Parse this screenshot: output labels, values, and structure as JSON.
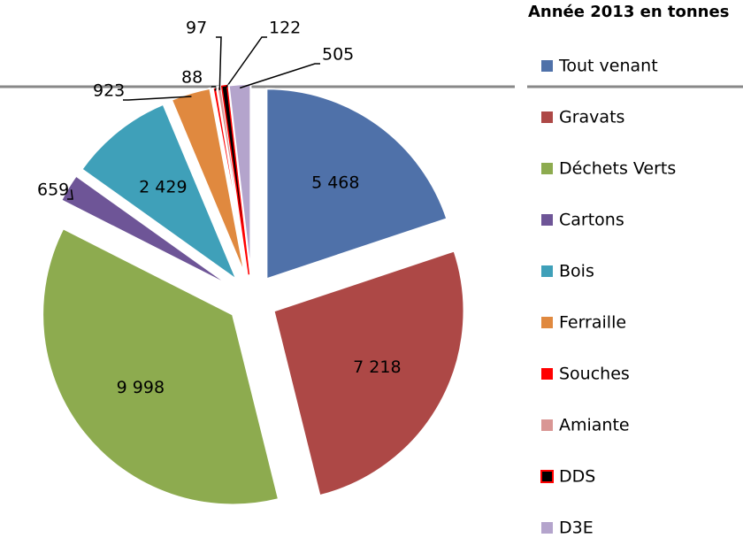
{
  "chart_data": {
    "type": "pie",
    "title": "Année 2013 en tonnes",
    "categories": [
      "Tout venant",
      "Gravats",
      "Déchets Verts",
      "Cartons",
      "Bois",
      "Ferraille",
      "Souches",
      "Amiante",
      "DDS",
      "D3E"
    ],
    "values": [
      5468,
      7218,
      9998,
      659,
      2429,
      923,
      88,
      97,
      122,
      505
    ],
    "value_labels": [
      "5 468",
      "7 218",
      "9 998",
      "659",
      "2 429",
      "923",
      "88",
      "97",
      "122",
      "505"
    ],
    "colors": [
      "#4f71a9",
      "#ad4846",
      "#8dab4f",
      "#6e5597",
      "#3fa0b9",
      "#e0893f",
      "#ff0000",
      "#d99694",
      "#000000",
      "#b4a4cc"
    ],
    "legend": "right"
  }
}
